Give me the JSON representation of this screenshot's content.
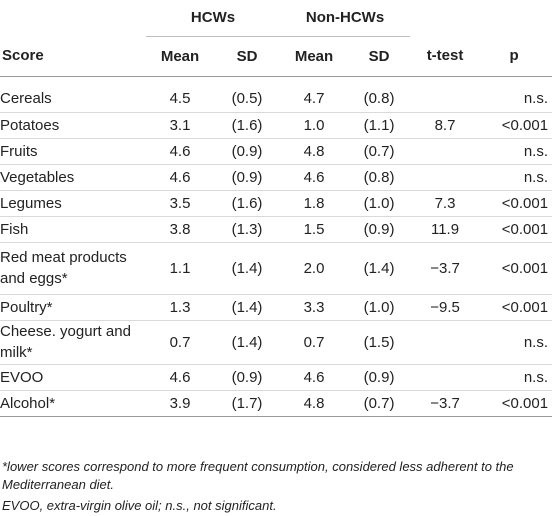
{
  "group_headers": {
    "hcw": "HCWs",
    "non_hcw": "Non-HCWs"
  },
  "column_headers": {
    "score": "Score",
    "hcw_mean": "Mean",
    "hcw_sd": "SD",
    "non_mean": "Mean",
    "non_sd": "SD",
    "ttest": "t-test",
    "p": "p"
  },
  "rows": [
    {
      "label": "Cereals",
      "hcw_mean": "4.5",
      "hcw_sd": "(0.5)",
      "non_mean": "4.7",
      "non_sd": "(0.8)",
      "ttest": "",
      "p": "n.s."
    },
    {
      "label": "Potatoes",
      "hcw_mean": "3.1",
      "hcw_sd": "(1.6)",
      "non_mean": "1.0",
      "non_sd": "(1.1)",
      "ttest": "8.7",
      "p": "<0.001"
    },
    {
      "label": "Fruits",
      "hcw_mean": "4.6",
      "hcw_sd": "(0.9)",
      "non_mean": "4.8",
      "non_sd": "(0.7)",
      "ttest": "",
      "p": "n.s."
    },
    {
      "label": "Vegetables",
      "hcw_mean": "4.6",
      "hcw_sd": "(0.9)",
      "non_mean": "4.6",
      "non_sd": "(0.8)",
      "ttest": "",
      "p": "n.s."
    },
    {
      "label": "Legumes",
      "hcw_mean": "3.5",
      "hcw_sd": "(1.6)",
      "non_mean": "1.8",
      "non_sd": "(1.0)",
      "ttest": "7.3",
      "p": "<0.001"
    },
    {
      "label": "Fish",
      "hcw_mean": "3.8",
      "hcw_sd": "(1.3)",
      "non_mean": "1.5",
      "non_sd": "(0.9)",
      "ttest": "11.9",
      "p": "<0.001"
    },
    {
      "label": "Red meat products and eggs*",
      "hcw_mean": "1.1",
      "hcw_sd": "(1.4)",
      "non_mean": "2.0",
      "non_sd": "(1.4)",
      "ttest": "−3.7",
      "p": "<0.001"
    },
    {
      "label": "Poultry*",
      "hcw_mean": "1.3",
      "hcw_sd": "(1.4)",
      "non_mean": "3.3",
      "non_sd": "(1.0)",
      "ttest": "−9.5",
      "p": "<0.001"
    },
    {
      "label": "Cheese. yogurt and milk*",
      "hcw_mean": "0.7",
      "hcw_sd": "(1.4)",
      "non_mean": "0.7",
      "non_sd": "(1.5)",
      "ttest": "",
      "p": "n.s."
    },
    {
      "label": "EVOO",
      "hcw_mean": "4.6",
      "hcw_sd": "(0.9)",
      "non_mean": "4.6",
      "non_sd": "(0.9)",
      "ttest": "",
      "p": "n.s."
    },
    {
      "label": "Alcohol*",
      "hcw_mean": "3.9",
      "hcw_sd": "(1.7)",
      "non_mean": "4.8",
      "non_sd": "(0.7)",
      "ttest": "−3.7",
      "p": "<0.001"
    }
  ],
  "footnotes": [
    "*lower scores correspond to more frequent consumption, considered less adherent to the Mediterranean diet.",
    "EVOO, extra-virgin olive oil; n.s., not significant."
  ]
}
